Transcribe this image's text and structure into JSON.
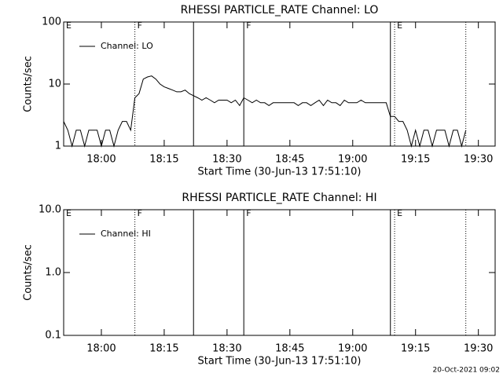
{
  "chart_data": [
    {
      "type": "line",
      "title": "RHESSI PARTICLE_RATE Channel: LO",
      "ylabel": "Counts/sec",
      "xlabel": "Start Time (30-Jun-13 17:51:10)",
      "ylog": true,
      "ylim": [
        1,
        100
      ],
      "yticks": [
        1,
        10,
        100
      ],
      "xlim": [
        "17:51",
        "19:34"
      ],
      "xticks": [
        "18:00",
        "18:15",
        "18:30",
        "18:45",
        "19:00",
        "19:15",
        "19:30"
      ],
      "legend": "top-left",
      "markers": [
        {
          "x": "18:08",
          "style": "dotted"
        },
        {
          "x": "18:22",
          "style": "solid"
        },
        {
          "x": "18:34",
          "style": "solid"
        },
        {
          "x": "19:09",
          "style": "solid"
        },
        {
          "x": "19:10",
          "style": "dotted"
        },
        {
          "x": "19:27",
          "style": "dotted"
        }
      ],
      "flags": [
        {
          "x": "17:51",
          "label": "E"
        },
        {
          "x": "18:08",
          "label": "F"
        },
        {
          "x": "18:34",
          "label": "F"
        },
        {
          "x": "19:10",
          "label": "E"
        }
      ],
      "x": [
        "17:51",
        "17:52",
        "17:53",
        "17:54",
        "17:55",
        "17:56",
        "17:57",
        "17:58",
        "17:59",
        "18:00",
        "18:01",
        "18:02",
        "18:03",
        "18:04",
        "18:05",
        "18:06",
        "18:07",
        "18:08",
        "18:09",
        "18:10",
        "18:11",
        "18:12",
        "18:13",
        "18:14",
        "18:15",
        "18:16",
        "18:17",
        "18:18",
        "18:19",
        "18:20",
        "18:21",
        "18:22",
        "18:23",
        "18:24",
        "18:25",
        "18:26",
        "18:27",
        "18:28",
        "18:29",
        "18:30",
        "18:31",
        "18:32",
        "18:33",
        "18:34",
        "18:35",
        "18:36",
        "18:37",
        "18:38",
        "18:39",
        "18:40",
        "18:41",
        "18:42",
        "18:43",
        "18:44",
        "18:45",
        "18:46",
        "18:47",
        "18:48",
        "18:49",
        "18:50",
        "18:51",
        "18:52",
        "18:53",
        "18:54",
        "18:55",
        "18:56",
        "18:57",
        "18:58",
        "18:59",
        "19:00",
        "19:01",
        "19:02",
        "19:03",
        "19:04",
        "19:05",
        "19:06",
        "19:07",
        "19:08",
        "19:09",
        "19:10",
        "19:11",
        "19:12",
        "19:13",
        "19:14",
        "19:15",
        "19:16",
        "19:17",
        "19:18",
        "19:19",
        "19:20",
        "19:21",
        "19:22",
        "19:23",
        "19:24",
        "19:25",
        "19:26",
        "19:27"
      ],
      "series": [
        {
          "name": "Channel: LO",
          "color": "#000000",
          "values": [
            2.5,
            1.8,
            1,
            1.8,
            1.8,
            1,
            1.8,
            1.8,
            1.8,
            1,
            1.8,
            1.8,
            1,
            1.8,
            2.5,
            2.5,
            1.8,
            6,
            7,
            12,
            13,
            13.5,
            12,
            10,
            9,
            8.5,
            8,
            7.5,
            7.5,
            8,
            7,
            6.5,
            6,
            5.5,
            6,
            5.5,
            5,
            5.5,
            5.5,
            5.5,
            5,
            5.5,
            4.5,
            6,
            5.5,
            5,
            5.5,
            5,
            5,
            4.5,
            5,
            5,
            5,
            5,
            5,
            5,
            4.5,
            5,
            5,
            4.5,
            5,
            5.5,
            4.5,
            5.5,
            5,
            5,
            4.5,
            5.5,
            5,
            5,
            5,
            5.5,
            5,
            5,
            5,
            5,
            5,
            5,
            3,
            3,
            2.5,
            2.5,
            1.8,
            1,
            1.8,
            1,
            1.8,
            1.8,
            1,
            1.8,
            1.8,
            1.8,
            1,
            1.8,
            1.8,
            1,
            1.8
          ]
        }
      ]
    },
    {
      "type": "line",
      "title": "RHESSI PARTICLE_RATE Channel: HI",
      "ylabel": "Counts/sec",
      "xlabel": "Start Time (30-Jun-13 17:51:10)",
      "ylog": true,
      "ylim": [
        0.1,
        10
      ],
      "yticks": [
        0.1,
        {
          "value": 1,
          "label": "1.0"
        },
        {
          "value": 10,
          "label": "10.0"
        }
      ],
      "xlim": [
        "17:51",
        "19:34"
      ],
      "xticks": [
        "18:00",
        "18:15",
        "18:30",
        "18:45",
        "19:00",
        "19:15",
        "19:30"
      ],
      "legend": "top-left",
      "markers": [
        {
          "x": "18:08",
          "style": "dotted"
        },
        {
          "x": "18:22",
          "style": "solid"
        },
        {
          "x": "18:34",
          "style": "solid"
        },
        {
          "x": "19:09",
          "style": "solid"
        },
        {
          "x": "19:10",
          "style": "dotted"
        },
        {
          "x": "19:27",
          "style": "dotted"
        }
      ],
      "flags": [
        {
          "x": "17:51",
          "label": "E"
        },
        {
          "x": "18:08",
          "label": "F"
        },
        {
          "x": "18:34",
          "label": "F"
        },
        {
          "x": "19:10",
          "label": "E"
        }
      ],
      "x": [],
      "series": [
        {
          "name": "Channel: HI",
          "color": "#000000",
          "values": []
        }
      ]
    }
  ],
  "footer": "20-Oct-2021 09:02"
}
